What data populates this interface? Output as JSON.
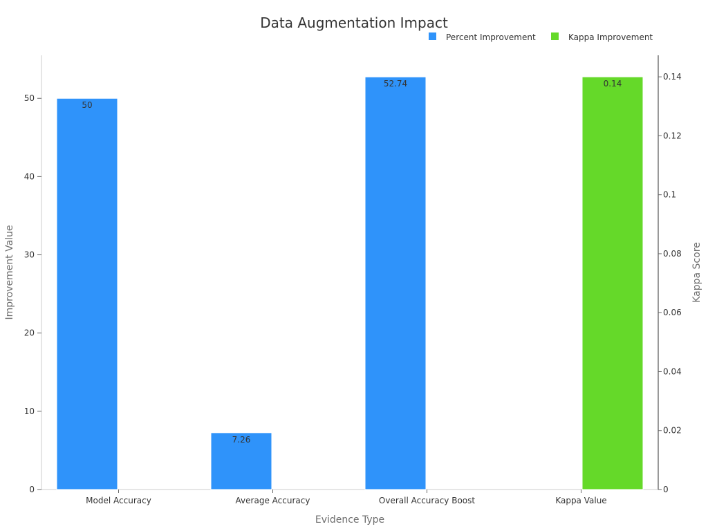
{
  "chart_data": {
    "type": "bar",
    "title": "Data Augmentation Impact",
    "xlabel": "Evidence Type",
    "ylabel": "Improvement Value",
    "y2label": "Kappa Score",
    "categories": [
      "Model Accuracy",
      "Average Accuracy",
      "Overall Accuracy Boost",
      "Kappa Value"
    ],
    "ylim": [
      0,
      55.5
    ],
    "y2lim": [
      0,
      0.1473
    ],
    "yticks": [
      0,
      10,
      20,
      30,
      40,
      50
    ],
    "y2ticks": [
      0,
      0.02,
      0.04,
      0.06,
      0.08,
      0.1,
      0.12,
      0.14
    ],
    "y2tick_labels": [
      "0",
      "0.02",
      "0.04",
      "0.06",
      "0.08",
      "0.1",
      "0.12",
      "0.14"
    ],
    "legend_position": "top-right",
    "grid": false,
    "series": [
      {
        "name": "Percent Improvement",
        "axis": "left",
        "color": "#2f93fa",
        "values": [
          50,
          7.26,
          52.74,
          null
        ],
        "labels": [
          "50",
          "7.26",
          "52.74",
          ""
        ]
      },
      {
        "name": "Kappa Improvement",
        "axis": "right",
        "color": "#65d929",
        "values": [
          null,
          null,
          null,
          0.14
        ],
        "labels": [
          "",
          "",
          "",
          "0.14"
        ]
      }
    ]
  }
}
